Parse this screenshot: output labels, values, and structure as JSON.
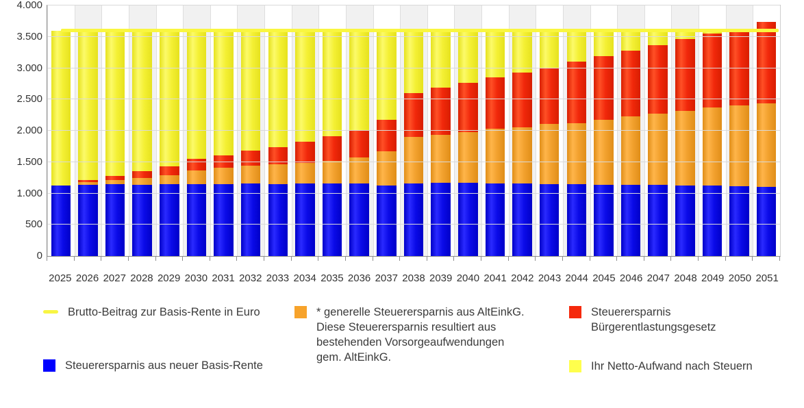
{
  "chart_data": {
    "type": "bar",
    "stacked": true,
    "categories": [
      2025,
      2026,
      2027,
      2028,
      2029,
      2030,
      2031,
      2032,
      2033,
      2034,
      2035,
      2036,
      2037,
      2038,
      2039,
      2040,
      2041,
      2042,
      2043,
      2044,
      2045,
      2046,
      2047,
      2048,
      2049,
      2050,
      2051
    ],
    "series": [
      {
        "name": "Steuerersparnis aus neuer Basis-Rente",
        "color": {
          "base": "#0b0be8",
          "light": "#2a2aff",
          "dark": "#0000c8"
        },
        "values": [
          1130,
          1140,
          1143,
          1140,
          1145,
          1150,
          1152,
          1160,
          1152,
          1158,
          1158,
          1158,
          1130,
          1160,
          1165,
          1165,
          1162,
          1160,
          1152,
          1145,
          1140,
          1135,
          1132,
          1128,
          1125,
          1120,
          1100
        ]
      },
      {
        "name": "* generelle Steuerersparnis aus AltEinkG. Diese Steuerersparnis resultiert aus bestehenden Vorsorgeaufwendungen gem. AltEinkG.",
        "color": {
          "base": "#f2a12e",
          "light": "#ffb54a",
          "dark": "#e08e18"
        },
        "values": [
          0,
          40,
          70,
          105,
          150,
          220,
          254,
          283,
          308,
          329,
          358,
          413,
          539,
          740,
          772,
          818,
          873,
          897,
          958,
          980,
          1030,
          1093,
          1140,
          1192,
          1242,
          1284,
          1340
        ]
      },
      {
        "name": "Steuerersparnis Bürgerentlastungsgesetz",
        "color": {
          "base": "#f1280b",
          "light": "#ff5026",
          "dark": "#d81e00"
        },
        "values": [
          0,
          35,
          67,
          110,
          137,
          183,
          202,
          237,
          282,
          339,
          392,
          434,
          506,
          698,
          748,
          785,
          814,
          877,
          890,
          980,
          1020,
          1052,
          1096,
          1143,
          1187,
          1226,
          1297
        ]
      },
      {
        "name": "Ihr Netto-Aufwand nach Steuern",
        "color": {
          "base": "#f4f034",
          "light": "#fcfa6a",
          "dark": "#e6e21e"
        },
        "values": [
          2470,
          2385,
          2320,
          2245,
          2168,
          2047,
          1992,
          1920,
          1858,
          1774,
          1692,
          1595,
          1425,
          1002,
          915,
          832,
          751,
          666,
          600,
          495,
          410,
          320,
          232,
          137,
          46,
          0,
          0
        ]
      }
    ],
    "line_series": {
      "name": "Brutto-Beitrag zur Basis-Rente in Euro",
      "color": "#f9f640",
      "value": 3600
    },
    "y_axis": {
      "min": 0,
      "max": 4000,
      "step": 500,
      "tick_labels": [
        "0",
        "500",
        "1.000",
        "1.500",
        "2.000",
        "2.500",
        "3.000",
        "3.500",
        "4.000"
      ]
    },
    "x_axis": {
      "tick_labels": [
        "2025",
        "2026",
        "2027",
        "2028",
        "2029",
        "2030",
        "2031",
        "2032",
        "2033",
        "2034",
        "2035",
        "2036",
        "2037",
        "2038",
        "2039",
        "2040",
        "2041",
        "2042",
        "2043",
        "2044",
        "2045",
        "2046",
        "2047",
        "2048",
        "2049",
        "2050",
        "2051"
      ]
    },
    "grid": true,
    "column_stripe_color": "#f1f1f1",
    "legend_position": "bottom"
  },
  "legend": {
    "items": [
      {
        "label": "Brutto-Beitrag zur Basis-Rente in Euro",
        "marker": "line",
        "color": "#f8f543"
      },
      {
        "label": "Steuerersparnis aus neuer Basis-Rente",
        "marker": "square",
        "color": "#0000ff"
      },
      {
        "label": "* generelle Steuerersparnis aus AltEinkG. Diese Steuerersparnis resultiert aus bestehenden Vorsorgeaufwendungen gem. AltEinkG.",
        "marker": "square",
        "color": "#f7a32b"
      },
      {
        "label": "Steuerersparnis Bürgerentlastungsgesetz",
        "marker": "square",
        "color": "#f5290c"
      },
      {
        "label": "Ihr Netto-Aufwand nach Steuern",
        "marker": "square",
        "color": "#ffff4d"
      }
    ]
  }
}
